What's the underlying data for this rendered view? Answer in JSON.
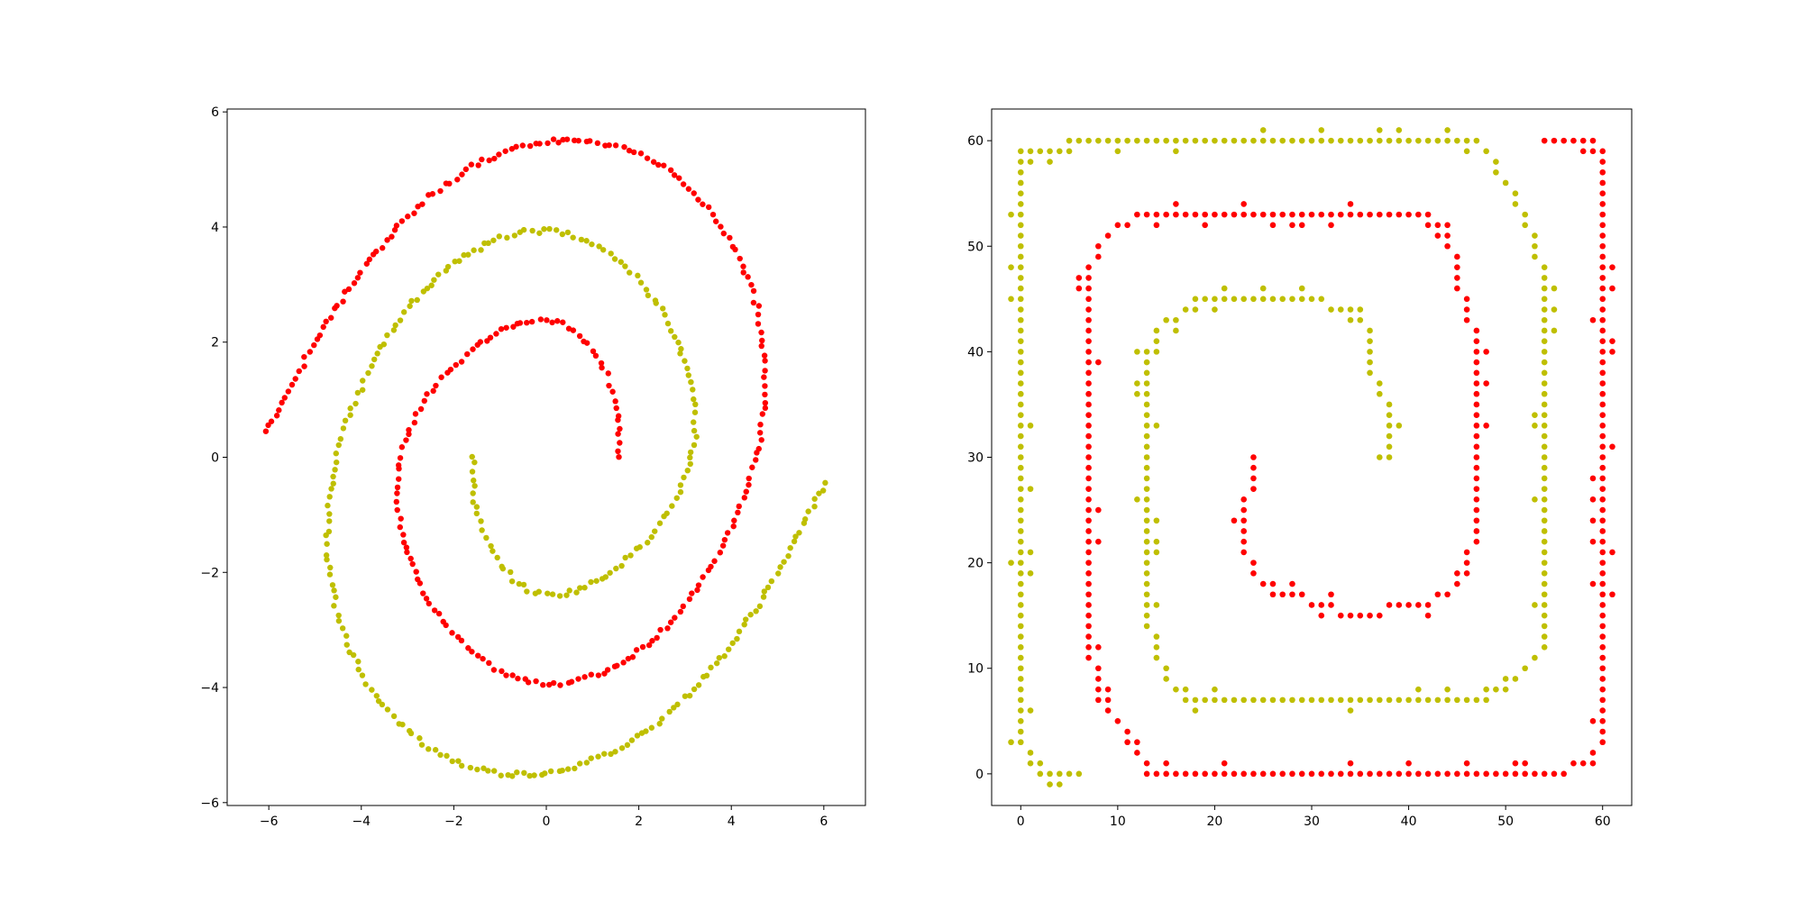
{
  "chart_data": [
    {
      "type": "scatter",
      "title": "",
      "xlabel": "",
      "ylabel": "",
      "xlim": [
        -6.9,
        6.9
      ],
      "ylim": [
        -6.05,
        6.05
      ],
      "xticks": [
        -6,
        -4,
        -2,
        0,
        2,
        4,
        6
      ],
      "yticks": [
        -6,
        -4,
        -2,
        0,
        2,
        4,
        6
      ],
      "xtick_labels": [
        "−6",
        "−4",
        "−2",
        "0",
        "2",
        "4",
        "6"
      ],
      "ytick_labels": [
        "−6",
        "−4",
        "−2",
        "0",
        "2",
        "4",
        "6"
      ],
      "grid": false,
      "legend": "none",
      "series": [
        {
          "color": "#ff0000",
          "description": "double spiral arm A: starts at (1.57, 0) and winds counter-clockwise outward to about (-6.1, 0.45)",
          "points": [
            [
              1.57,
              0.0
            ],
            [
              1.59,
              0.25
            ],
            [
              1.58,
              0.5
            ],
            [
              1.55,
              0.75
            ],
            [
              1.48,
              1.0
            ],
            [
              1.38,
              1.28
            ],
            [
              1.23,
              1.56
            ],
            [
              1.0,
              1.86
            ],
            [
              0.72,
              2.12
            ],
            [
              0.39,
              2.31
            ],
            [
              0.0,
              2.39
            ],
            [
              -0.42,
              2.37
            ],
            [
              -0.86,
              2.25
            ],
            [
              -1.3,
              2.05
            ],
            [
              -1.73,
              1.78
            ],
            [
              -2.15,
              1.45
            ],
            [
              -2.55,
              1.06
            ],
            [
              -2.88,
              0.62
            ],
            [
              -3.1,
              0.15
            ],
            [
              -3.22,
              -0.35
            ],
            [
              -3.2,
              -0.9
            ],
            [
              -3.07,
              -1.45
            ],
            [
              -2.83,
              -2.0
            ],
            [
              -2.5,
              -2.55
            ],
            [
              -2.05,
              -3.05
            ],
            [
              -1.5,
              -3.48
            ],
            [
              -0.88,
              -3.78
            ],
            [
              -0.22,
              -3.93
            ],
            [
              0.45,
              -3.92
            ],
            [
              1.12,
              -3.78
            ],
            [
              1.78,
              -3.5
            ],
            [
              2.4,
              -3.1
            ],
            [
              2.98,
              -2.6
            ],
            [
              3.5,
              -2.0
            ],
            [
              3.95,
              -1.33
            ],
            [
              4.32,
              -0.6
            ],
            [
              4.6,
              0.18
            ],
            [
              4.73,
              0.98
            ],
            [
              4.72,
              1.8
            ],
            [
              4.56,
              2.6
            ],
            [
              4.25,
              3.35
            ],
            [
              3.8,
              4.02
            ],
            [
              3.22,
              4.6
            ],
            [
              2.55,
              5.05
            ],
            [
              1.8,
              5.35
            ],
            [
              0.98,
              5.5
            ],
            [
              0.12,
              5.5
            ],
            [
              -0.75,
              5.35
            ],
            [
              -1.6,
              5.05
            ],
            [
              -2.42,
              4.6
            ],
            [
              -3.2,
              4.02
            ],
            [
              -3.92,
              3.33
            ],
            [
              -4.6,
              2.55
            ],
            [
              -5.2,
              1.72
            ],
            [
              -5.7,
              0.95
            ],
            [
              -6.05,
              0.45
            ]
          ]
        },
        {
          "color": "#bfbf00",
          "description": "double spiral arm B: starts at (-1.57, 0) and winds counter-clockwise outward to about (6.1, -0.45)",
          "points": [
            [
              -1.57,
              0.0
            ],
            [
              -1.59,
              -0.25
            ],
            [
              -1.58,
              -0.5
            ],
            [
              -1.55,
              -0.75
            ],
            [
              -1.48,
              -1.0
            ],
            [
              -1.38,
              -1.28
            ],
            [
              -1.23,
              -1.56
            ],
            [
              -1.0,
              -1.86
            ],
            [
              -0.72,
              -2.12
            ],
            [
              -0.39,
              -2.31
            ],
            [
              0.0,
              -2.39
            ],
            [
              0.42,
              -2.37
            ],
            [
              0.86,
              -2.25
            ],
            [
              1.3,
              -2.05
            ],
            [
              1.73,
              -1.78
            ],
            [
              2.15,
              -1.45
            ],
            [
              2.55,
              -1.06
            ],
            [
              2.88,
              -0.62
            ],
            [
              3.1,
              -0.15
            ],
            [
              3.22,
              0.35
            ],
            [
              3.2,
              0.9
            ],
            [
              3.07,
              1.45
            ],
            [
              2.83,
              2.0
            ],
            [
              2.5,
              2.55
            ],
            [
              2.05,
              3.05
            ],
            [
              1.5,
              3.48
            ],
            [
              0.88,
              3.78
            ],
            [
              0.22,
              3.93
            ],
            [
              -0.45,
              3.92
            ],
            [
              -1.12,
              3.78
            ],
            [
              -1.78,
              3.5
            ],
            [
              -2.4,
              3.1
            ],
            [
              -2.98,
              2.6
            ],
            [
              -3.5,
              2.0
            ],
            [
              -3.95,
              1.33
            ],
            [
              -4.32,
              0.6
            ],
            [
              -4.6,
              -0.18
            ],
            [
              -4.73,
              -0.98
            ],
            [
              -4.72,
              -1.8
            ],
            [
              -4.56,
              -2.6
            ],
            [
              -4.25,
              -3.35
            ],
            [
              -3.8,
              -4.02
            ],
            [
              -3.22,
              -4.6
            ],
            [
              -2.55,
              -5.05
            ],
            [
              -1.8,
              -5.35
            ],
            [
              -0.98,
              -5.5
            ],
            [
              -0.12,
              -5.5
            ],
            [
              0.75,
              -5.35
            ],
            [
              1.6,
              -5.05
            ],
            [
              2.42,
              -4.6
            ],
            [
              3.2,
              -4.02
            ],
            [
              3.92,
              -3.33
            ],
            [
              4.6,
              -2.55
            ],
            [
              5.2,
              -1.72
            ],
            [
              5.7,
              -0.95
            ],
            [
              6.05,
              -0.45
            ]
          ]
        }
      ]
    },
    {
      "type": "scatter",
      "title": "",
      "xlabel": "",
      "ylabel": "",
      "xlim": [
        -3,
        63
      ],
      "ylim": [
        -3,
        63
      ],
      "xticks": [
        0,
        10,
        20,
        30,
        40,
        50,
        60
      ],
      "yticks": [
        0,
        10,
        20,
        30,
        40,
        50,
        60
      ],
      "xtick_labels": [
        "0",
        "10",
        "20",
        "30",
        "40",
        "50",
        "60"
      ],
      "ytick_labels": [
        "0",
        "10",
        "20",
        "30",
        "40",
        "50",
        "60"
      ],
      "grid": false,
      "legend": "none",
      "series": [
        {
          "color": "#ff0000",
          "description": "rasterized square spiral arm A (integer grid)",
          "polyline": [
            [
              54,
              60
            ],
            [
              58,
              60
            ],
            [
              59,
              59
            ],
            [
              60,
              57
            ],
            [
              60,
              4
            ],
            [
              59,
              2
            ],
            [
              58,
              1
            ],
            [
              56,
              0
            ],
            [
              13,
              0
            ],
            [
              12,
              2
            ],
            [
              11,
              4
            ],
            [
              9,
              6
            ],
            [
              8,
              8
            ],
            [
              7,
              12
            ],
            [
              7,
              48
            ],
            [
              9,
              51
            ],
            [
              10,
              52
            ],
            [
              13,
              53
            ],
            [
              42,
              53
            ],
            [
              44,
              51
            ],
            [
              45,
              47
            ],
            [
              46,
              44
            ],
            [
              47,
              40
            ],
            [
              47,
              24
            ],
            [
              46,
              20
            ],
            [
              44,
              17
            ],
            [
              42,
              16
            ],
            [
              34,
              15
            ],
            [
              30,
              16
            ],
            [
              28,
              17
            ],
            [
              26,
              17
            ],
            [
              24,
              19
            ],
            [
              23,
              22
            ],
            [
              23,
              24
            ],
            [
              24,
              30
            ]
          ]
        },
        {
          "color": "#bfbf00",
          "description": "rasterized square spiral arm B (integer grid)",
          "polyline": [
            [
              6,
              0
            ],
            [
              2,
              0
            ],
            [
              1,
              1
            ],
            [
              0,
              3
            ],
            [
              0,
              59
            ],
            [
              1,
              58
            ],
            [
              3,
              59
            ],
            [
              6,
              60
            ],
            [
              47,
              60
            ],
            [
              48,
              59
            ],
            [
              49,
              57
            ],
            [
              51,
              55
            ],
            [
              52,
              52
            ],
            [
              53,
              50
            ],
            [
              54,
              46
            ],
            [
              54,
              12
            ],
            [
              52,
              10
            ],
            [
              50,
              8
            ],
            [
              47,
              7
            ],
            [
              17,
              7
            ],
            [
              15,
              9
            ],
            [
              14,
              11
            ],
            [
              13,
              15
            ],
            [
              13,
              40
            ],
            [
              14,
              42
            ],
            [
              16,
              43
            ],
            [
              18,
              44
            ],
            [
              20,
              45
            ],
            [
              29,
              45
            ],
            [
              33,
              44
            ],
            [
              35,
              43
            ],
            [
              36,
              42
            ],
            [
              36,
              38
            ],
            [
              37,
              36
            ],
            [
              38,
              34
            ],
            [
              38,
              31
            ],
            [
              37,
              30
            ]
          ]
        }
      ]
    }
  ]
}
